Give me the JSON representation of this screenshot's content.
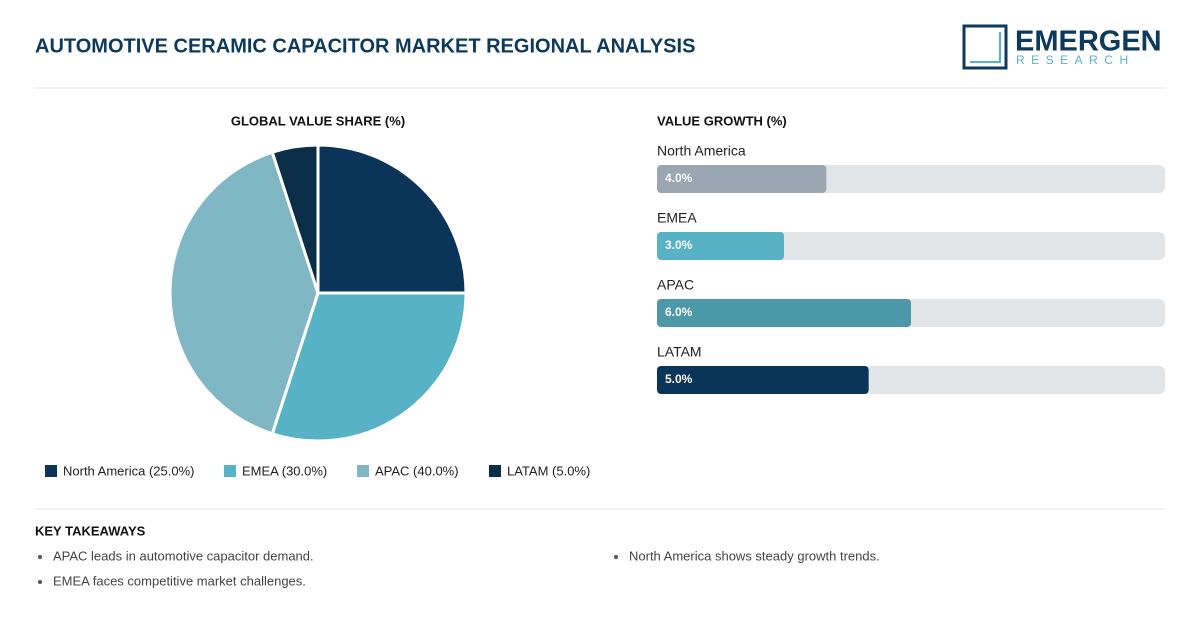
{
  "header": {
    "title": "AUTOMOTIVE CERAMIC CAPACITOR MARKET REGIONAL ANALYSIS",
    "logo": {
      "name": "EMERGEN",
      "tagline": "RESEARCH"
    }
  },
  "chart_data": [
    {
      "type": "pie",
      "title": "GLOBAL VALUE SHARE (%)",
      "categories": [
        "North America (25.0%)",
        "EMEA (30.0%)",
        "APAC (40.0%)",
        "LATAM (5.0%)"
      ],
      "values": [
        25,
        30,
        40,
        5
      ],
      "colors": [
        "#0b3558",
        "#58b2c6",
        "#7fb7c5",
        "#0a2d48"
      ]
    },
    {
      "type": "bar",
      "title": "VALUE GROWTH (%)",
      "categories": [
        "North America",
        "EMEA",
        "APAC",
        "LATAM"
      ],
      "values": [
        4,
        3,
        6,
        5
      ],
      "value_labels": [
        "4.0%",
        "3.0%",
        "6.0%",
        "5.0%"
      ],
      "colors": [
        "#9aa6b1",
        "#58b2c6",
        "#4a98a8",
        "#0b3558"
      ],
      "xlim": [
        0,
        12
      ]
    }
  ],
  "takeaways": {
    "title": "KEY TAKEAWAYS",
    "items": [
      "APAC leads in automotive capacitor demand.",
      "EMEA faces competitive market challenges.",
      "North America shows steady growth trends."
    ]
  }
}
